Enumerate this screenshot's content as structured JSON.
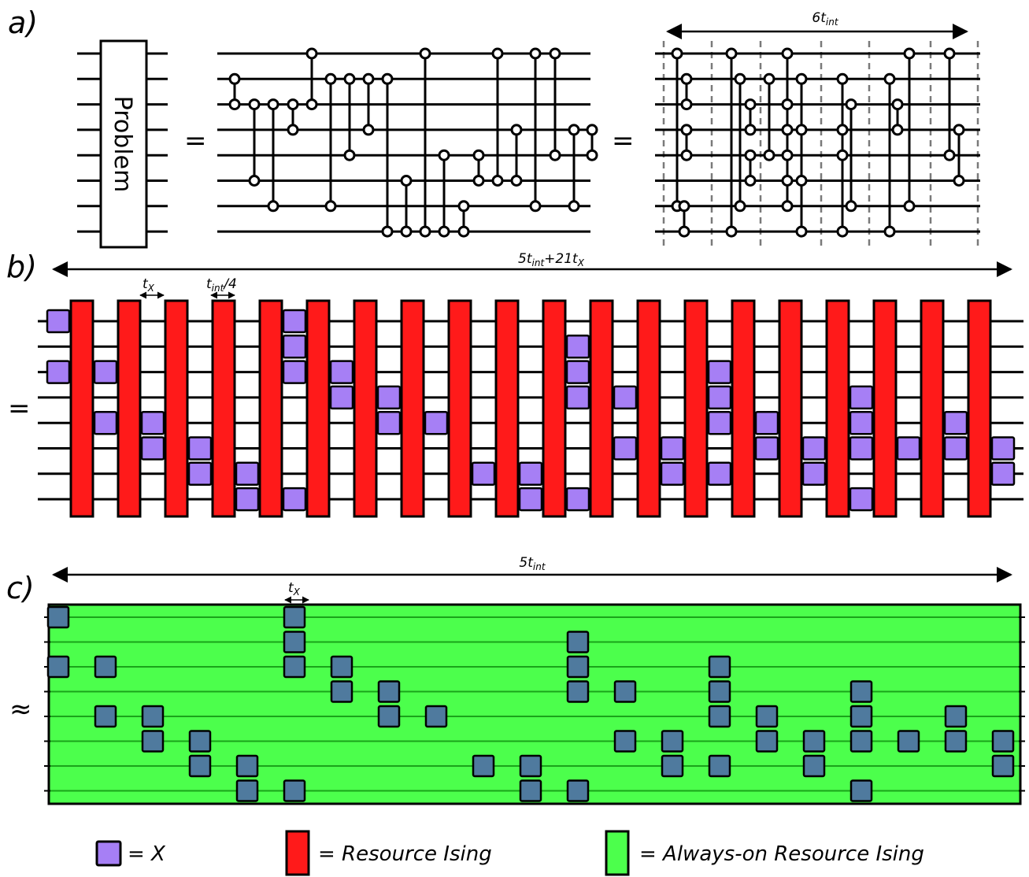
{
  "panels": {
    "a": {
      "label": "a)",
      "problem_box_label": "Problem",
      "equals_1": "=",
      "equals_2": "=",
      "span_label": "6t",
      "span_label_sub": "int",
      "wires": 8,
      "gates_middle": [
        [
          0,
          1
        ],
        [
          0,
          5
        ],
        [
          1,
          6
        ],
        [
          1,
          4
        ],
        [
          2,
          7
        ],
        [
          1,
          4
        ],
        [
          1,
          3
        ],
        [
          1,
          4
        ],
        [
          2,
          0
        ],
        [
          1,
          7
        ],
        [
          1,
          4
        ],
        [
          1,
          3
        ],
        [
          1,
          7
        ],
        [
          1,
          7
        ],
        [
          3,
          7
        ],
        [
          0,
          7
        ],
        [
          2,
          7
        ],
        [
          2,
          6
        ],
        [
          2,
          6
        ],
        [
          2,
          5
        ],
        [
          0,
          5
        ],
        [
          0,
          6
        ],
        [
          0,
          4
        ],
        [
          4,
          5
        ],
        [
          4,
          5
        ]
      ],
      "gates_right_layers": 6
    },
    "b": {
      "label": "b)",
      "equals": "=",
      "span_label": "5t",
      "span_label_sub": "int",
      "span_label_rest": "+21t",
      "span_label_rest_sub": "X",
      "tx_label": "t",
      "tx_label_sub": "X",
      "tint4_label": "t",
      "tint4_label_sub": "int",
      "tint4_label_rest": "/4",
      "x_pulses": [
        [
          0,
          0
        ],
        [
          0,
          2
        ],
        [
          1,
          2
        ],
        [
          1,
          4
        ],
        [
          2,
          4
        ],
        [
          2,
          5
        ],
        [
          3,
          5
        ],
        [
          3,
          6
        ],
        [
          4,
          6
        ],
        [
          4,
          7
        ],
        [
          5,
          0
        ],
        [
          5,
          1
        ],
        [
          5,
          2
        ],
        [
          5,
          7
        ],
        [
          6,
          2
        ],
        [
          6,
          3
        ],
        [
          7,
          3
        ],
        [
          7,
          4
        ],
        [
          8,
          4
        ],
        [
          9,
          6
        ],
        [
          10,
          6
        ],
        [
          10,
          7
        ],
        [
          11,
          1
        ],
        [
          11,
          2
        ],
        [
          11,
          3
        ],
        [
          11,
          7
        ],
        [
          12,
          3
        ],
        [
          12,
          5
        ],
        [
          13,
          5
        ],
        [
          13,
          6
        ],
        [
          14,
          2
        ],
        [
          14,
          3
        ],
        [
          14,
          4
        ],
        [
          14,
          6
        ],
        [
          15,
          4
        ],
        [
          15,
          5
        ],
        [
          16,
          5
        ],
        [
          16,
          6
        ],
        [
          17,
          3
        ],
        [
          17,
          4
        ],
        [
          17,
          5
        ],
        [
          17,
          7
        ],
        [
          18,
          5
        ],
        [
          19,
          4
        ],
        [
          19,
          5
        ],
        [
          20,
          5
        ],
        [
          20,
          6
        ],
        [
          21,
          6
        ],
        [
          21,
          7
        ]
      ]
    },
    "c": {
      "label": "c)",
      "approx": "≈",
      "span_label": "5t",
      "span_label_sub": "int",
      "tx_label": "t",
      "tx_label_sub": "X"
    }
  },
  "legend": {
    "x_text": "= X",
    "resource_text": "=  Resource Ising",
    "always_on_text": "= Always-on Resource Ising"
  },
  "colors": {
    "x_pulse": "#a67ff5",
    "x_pulse_c": "#4f7a9e",
    "resource": "#ff1a1a",
    "always_on": "#4cff4c",
    "always_on_line": "#1aa31a",
    "divider": "#7a7a7a"
  }
}
